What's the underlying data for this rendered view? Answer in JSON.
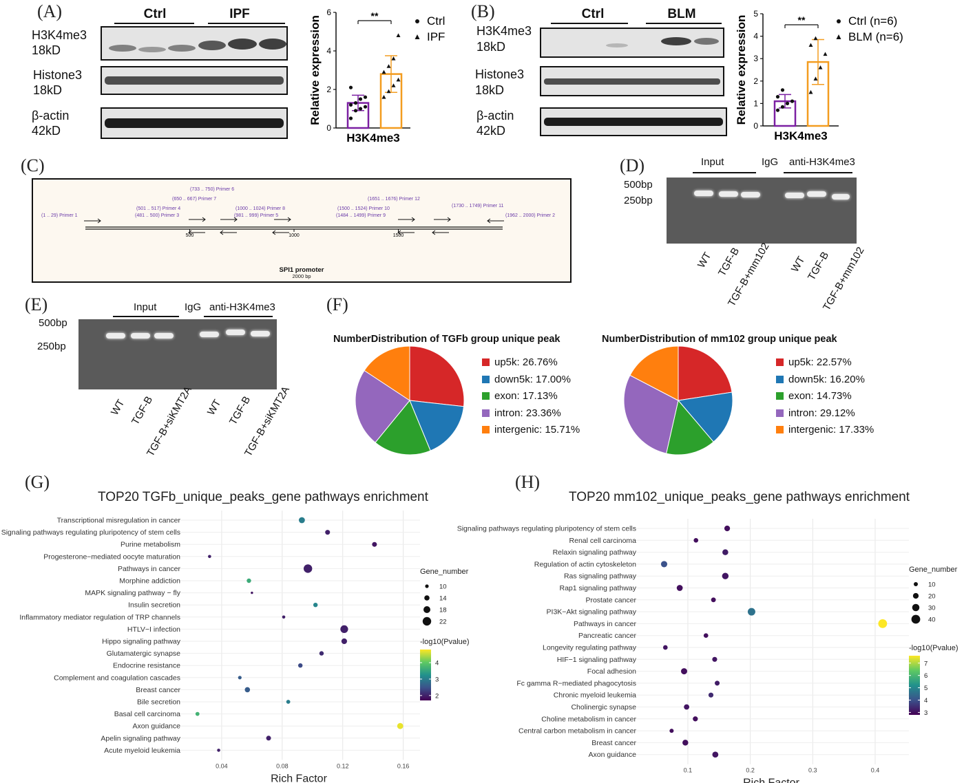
{
  "panels": {
    "A": "(A)",
    "B": "(B)",
    "C": "(C)",
    "D": "(D)",
    "E": "(E)",
    "F": "(F)",
    "G": "(G)",
    "H": "(H)"
  },
  "panel_a": {
    "groups": [
      "Ctrl",
      "IPF"
    ],
    "blots": [
      {
        "name": "H3K4me3",
        "size": "18kD"
      },
      {
        "name": "Histone3",
        "size": "18kD"
      },
      {
        "name": "β-actin",
        "size": "42kD"
      }
    ]
  },
  "panel_b": {
    "groups": [
      "Ctrl",
      "BLM"
    ],
    "blots": [
      {
        "name": "H3K4me3",
        "size": "18kD"
      },
      {
        "name": "Histone3",
        "size": "18kD"
      },
      {
        "name": "β-actin",
        "size": "42kD"
      }
    ]
  },
  "panel_c": {
    "title": "SPI1 promoter",
    "subtitle": "2000 bp",
    "ticks": [
      "500",
      "1000",
      "1500"
    ],
    "primers": [
      {
        "range": "(1 .. 29)",
        "name": "Primer 1"
      },
      {
        "range": "(501 .. 517)",
        "name": "Primer 4"
      },
      {
        "range": "(481 .. 500)",
        "name": "Primer 3"
      },
      {
        "range": "(650 .. 667)",
        "name": "Primer 7"
      },
      {
        "range": "(733 .. 750)",
        "name": "Primer 6"
      },
      {
        "range": "(1000 .. 1024)",
        "name": "Primer 8"
      },
      {
        "range": "(981 .. 999)",
        "name": "Primer 5"
      },
      {
        "range": "(1500 .. 1524)",
        "name": "Primer 10"
      },
      {
        "range": "(1484 .. 1499)",
        "name": "Primer 9"
      },
      {
        "range": "(1651 .. 1676)",
        "name": "Primer 12"
      },
      {
        "range": "(1730 .. 1749)",
        "name": "Primer 11"
      },
      {
        "range": "(1962 .. 2000)",
        "name": "Primer 2"
      }
    ]
  },
  "panel_d": {
    "headers": {
      "input": "Input",
      "igg": "IgG",
      "ab": "anti-H3K4me3"
    },
    "markers": [
      "500bp",
      "250bp"
    ],
    "lanes": [
      "WT",
      "TGF-B",
      "TGF-B+mm102",
      "WT",
      "TGF-B",
      "TGF-B+mm102"
    ]
  },
  "panel_e": {
    "headers": {
      "input": "Input",
      "igg": "IgG",
      "ab": "anti-H3K4me3"
    },
    "markers": [
      "500bp",
      "250bp"
    ],
    "lanes": [
      "WT",
      "TGF-B",
      "TGF-B+siKMT2A",
      "WT",
      "TGF-B",
      "TGF-B+siKMT2A"
    ]
  },
  "colors": {
    "ctrl": "#7b1fa2",
    "case": "#f39c1f",
    "up5k": "#d62728",
    "down5k": "#1f77b4",
    "exon": "#2ca02c",
    "intron": "#9467bd",
    "intergenic": "#ff7f0e"
  },
  "chart_data": [
    {
      "id": "A-bar",
      "type": "bar",
      "categories": [
        "Ctrl",
        "IPF"
      ],
      "xlabel": "H3K4me3",
      "ylabel": "Relative expression",
      "ylim": [
        0,
        6
      ],
      "yticks": [
        "0",
        "2",
        "4",
        "6"
      ],
      "values": [
        1.3,
        2.8
      ],
      "errors": [
        0.4,
        0.95
      ],
      "points": [
        [
          0.5,
          0.9,
          1.0,
          1.1,
          1.2,
          1.3,
          1.5,
          1.6,
          2.1
        ],
        [
          1.6,
          1.9,
          2.2,
          2.5,
          2.9,
          3.2,
          3.6,
          4.8
        ]
      ],
      "legend": [
        "Ctrl",
        "IPF"
      ],
      "significance": "**"
    },
    {
      "id": "B-bar",
      "type": "bar",
      "categories": [
        "Ctrl (n=6)",
        "BLM (n=6)"
      ],
      "xlabel": "H3K4me3",
      "ylabel": "Relative expression",
      "ylim": [
        0,
        5
      ],
      "yticks": [
        "0",
        "1",
        "2",
        "3",
        "4",
        "5"
      ],
      "values": [
        1.1,
        2.85
      ],
      "errors": [
        0.3,
        1.0
      ],
      "points": [
        [
          0.7,
          0.85,
          1.0,
          1.1,
          1.3,
          1.6
        ],
        [
          1.5,
          2.1,
          2.6,
          3.2,
          3.6,
          3.9
        ]
      ],
      "legend": [
        "Ctrl (n=6)",
        "BLM (n=6)"
      ],
      "significance": "**"
    },
    {
      "id": "F-pie-1",
      "type": "pie",
      "title": "NumberDistribution of TGFb group unique peak",
      "labels": [
        "up5k: 26.76%",
        "down5k: 17.00%",
        "exon: 17.13%",
        "intron: 23.36%",
        "intergenic: 15.71%"
      ],
      "values": [
        26.76,
        17.0,
        17.13,
        23.36,
        15.71
      ]
    },
    {
      "id": "F-pie-2",
      "type": "pie",
      "title": "NumberDistribution of mm102 group unique peak",
      "labels": [
        "up5k: 22.57%",
        "down5k: 16.20%",
        "exon: 14.73%",
        "intron: 29.12%",
        "intergenic: 17.33%"
      ],
      "values": [
        22.57,
        16.2,
        14.73,
        29.12,
        17.33
      ]
    },
    {
      "id": "G-dot",
      "type": "scatter",
      "title": "TOP20 TGFb_unique_peaks_gene pathways enrichment",
      "xlabel": "Rich Factor",
      "xlim": [
        0.02,
        0.162
      ],
      "xticks": [
        0.04,
        0.08,
        0.12,
        0.16
      ],
      "xtick_labels": [
        "0.04",
        "0.08",
        "0.12",
        "0.16"
      ],
      "size_legend_title": "Gene_number",
      "size_legend": [
        10,
        14,
        18,
        22
      ],
      "color_legend_title": "-log10(Pvalue)",
      "color_range": [
        1.7,
        4.8
      ],
      "color_ticks": [
        2,
        3,
        4
      ],
      "points": [
        {
          "term": "Transcriptional misregulation in cancer",
          "x": 0.093,
          "size": 16,
          "p": 3.0
        },
        {
          "term": "Signaling pathways regulating pluripotency of stem cells",
          "x": 0.11,
          "size": 13,
          "p": 2.0
        },
        {
          "term": "Purine metabolism",
          "x": 0.141,
          "size": 13,
          "p": 1.9
        },
        {
          "term": "Progesterone−mediated oocyte maturation",
          "x": 0.032,
          "size": 9,
          "p": 2.0
        },
        {
          "term": "Pathways in cancer",
          "x": 0.097,
          "size": 22,
          "p": 2.0
        },
        {
          "term": "Morphine addiction",
          "x": 0.058,
          "size": 12,
          "p": 3.6
        },
        {
          "term": "MAPK signaling pathway − fly",
          "x": 0.06,
          "size": 7,
          "p": 1.9
        },
        {
          "term": "Insulin secretion",
          "x": 0.102,
          "size": 12,
          "p": 3.1
        },
        {
          "term": "Inflammatory mediator regulation of TRP channels",
          "x": 0.081,
          "size": 9,
          "p": 2.0
        },
        {
          "term": "HTLV−I infection",
          "x": 0.121,
          "size": 20,
          "p": 2.0
        },
        {
          "term": "Hippo signaling pathway",
          "x": 0.121,
          "size": 15,
          "p": 2.0
        },
        {
          "term": "Glutamatergic synapse",
          "x": 0.106,
          "size": 12,
          "p": 2.1
        },
        {
          "term": "Endocrine resistance",
          "x": 0.092,
          "size": 12,
          "p": 2.4
        },
        {
          "term": "Complement and coagulation cascades",
          "x": 0.052,
          "size": 10,
          "p": 2.6
        },
        {
          "term": "Breast cancer",
          "x": 0.057,
          "size": 14,
          "p": 2.6
        },
        {
          "term": "Bile secretion",
          "x": 0.084,
          "size": 11,
          "p": 3.0
        },
        {
          "term": "Basal cell carcinoma",
          "x": 0.024,
          "size": 11,
          "p": 3.7
        },
        {
          "term": "Axon guidance",
          "x": 0.158,
          "size": 16,
          "p": 4.7
        },
        {
          "term": "Apelin signaling pathway",
          "x": 0.071,
          "size": 13,
          "p": 2.0
        },
        {
          "term": "Acute myeloid leukemia",
          "x": 0.038,
          "size": 9,
          "p": 2.0
        }
      ]
    },
    {
      "id": "H-dot",
      "type": "scatter",
      "title": "TOP20 mm102_unique_peaks_gene pathways enrichment",
      "xlabel": "Rich Factor",
      "xlim": [
        0.035,
        0.432
      ],
      "xticks": [
        0.1,
        0.2,
        0.3,
        0.4
      ],
      "xtick_labels": [
        "0.1",
        "0.2",
        "0.3",
        "0.4"
      ],
      "size_legend_title": "Gene_number",
      "size_legend": [
        10,
        20,
        30,
        40
      ],
      "color_legend_title": "-log10(Pvalue)",
      "color_range": [
        2.8,
        7.6
      ],
      "color_ticks": [
        3,
        4,
        5,
        6,
        7
      ],
      "points": [
        {
          "term": "Signaling pathways regulating pluripotency of stem cells",
          "x": 0.163,
          "size": 20,
          "p": 3.0
        },
        {
          "term": "Renal cell carcinoma",
          "x": 0.113,
          "size": 13,
          "p": 3.0
        },
        {
          "term": "Relaxin signaling pathway",
          "x": 0.16,
          "size": 21,
          "p": 3.2
        },
        {
          "term": "Regulation of actin cytoskeleton",
          "x": 0.062,
          "size": 24,
          "p": 4.0
        },
        {
          "term": "Ras signaling pathway",
          "x": 0.16,
          "size": 25,
          "p": 3.1
        },
        {
          "term": "Rap1 signaling pathway",
          "x": 0.087,
          "size": 22,
          "p": 3.0
        },
        {
          "term": "Prostate cancer",
          "x": 0.141,
          "size": 14,
          "p": 3.0
        },
        {
          "term": "PI3K−Akt signaling pathway",
          "x": 0.202,
          "size": 32,
          "p": 4.6
        },
        {
          "term": "Pathways in cancer",
          "x": 0.412,
          "size": 40,
          "p": 7.6
        },
        {
          "term": "Pancreatic cancer",
          "x": 0.129,
          "size": 13,
          "p": 3.0
        },
        {
          "term": "Longevity regulating pathway",
          "x": 0.064,
          "size": 13,
          "p": 3.1
        },
        {
          "term": "HIF−1 signaling pathway",
          "x": 0.143,
          "size": 15,
          "p": 3.1
        },
        {
          "term": "Focal adhesion",
          "x": 0.094,
          "size": 23,
          "p": 3.0
        },
        {
          "term": "Fc gamma R−mediated phagocytosis",
          "x": 0.147,
          "size": 15,
          "p": 3.2
        },
        {
          "term": "Chronic myeloid leukemia",
          "x": 0.137,
          "size": 15,
          "p": 3.4
        },
        {
          "term": "Cholinergic synapse",
          "x": 0.098,
          "size": 18,
          "p": 3.1
        },
        {
          "term": "Choline metabolism in cancer",
          "x": 0.112,
          "size": 16,
          "p": 3.0
        },
        {
          "term": "Central carbon metabolism in cancer",
          "x": 0.074,
          "size": 10,
          "p": 3.0
        },
        {
          "term": "Breast cancer",
          "x": 0.096,
          "size": 21,
          "p": 3.0
        },
        {
          "term": "Axon guidance",
          "x": 0.144,
          "size": 22,
          "p": 3.1
        }
      ]
    }
  ]
}
